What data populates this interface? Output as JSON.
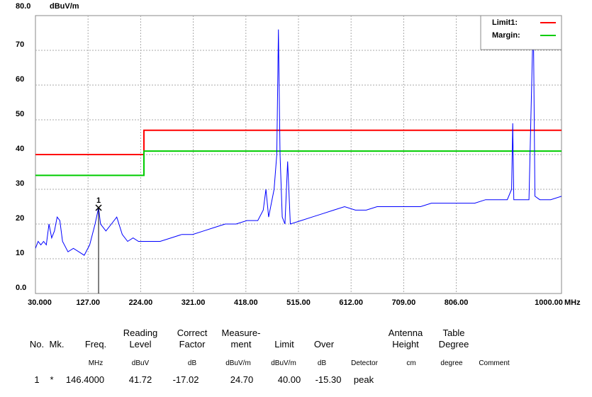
{
  "chart_data": {
    "type": "line",
    "y_unit": "dBuV/m",
    "x_unit": "MHz",
    "xlim": [
      30,
      1000
    ],
    "xticks": [
      {
        "value": 30,
        "label": "30.000"
      },
      {
        "value": 127,
        "label": "127.00"
      },
      {
        "value": 224,
        "label": "224.00"
      },
      {
        "value": 321,
        "label": "321.00"
      },
      {
        "value": 418,
        "label": "418.00"
      },
      {
        "value": 515,
        "label": "515.00"
      },
      {
        "value": 612,
        "label": "612.00"
      },
      {
        "value": 709,
        "label": "709.00"
      },
      {
        "value": 806,
        "label": "806.00"
      },
      {
        "value": 1000,
        "label": "1000.00"
      }
    ],
    "ylim": [
      0,
      80
    ],
    "yticks": [
      {
        "value": 0,
        "label": "0.0"
      },
      10,
      20,
      30,
      40,
      50,
      60,
      70,
      {
        "value": 80,
        "label": "80.0"
      }
    ],
    "grid": true,
    "legend": "top-right",
    "series": [
      {
        "color": "#0000ff",
        "x": [
          30,
          35,
          40,
          45,
          50,
          55,
          60,
          65,
          70,
          75,
          80,
          90,
          100,
          110,
          120,
          130,
          140,
          146.4,
          150,
          160,
          170,
          180,
          190,
          200,
          210,
          220,
          240,
          260,
          280,
          300,
          320,
          340,
          360,
          380,
          400,
          420,
          440,
          450,
          455,
          460,
          470,
          475,
          478,
          481,
          485,
          490,
          495,
          500,
          520,
          540,
          560,
          580,
          600,
          620,
          640,
          660,
          680,
          700,
          720,
          740,
          760,
          780,
          800,
          820,
          840,
          860,
          880,
          900,
          908,
          910,
          912,
          920,
          940,
          945,
          948,
          951,
          960,
          980,
          1000
        ],
        "values": [
          13,
          15,
          14,
          15,
          14,
          20,
          16,
          18,
          22,
          21,
          15,
          12,
          13,
          12,
          11,
          14,
          20,
          24.7,
          20,
          18,
          20,
          22,
          17,
          15,
          16,
          15,
          15,
          15,
          16,
          17,
          17,
          18,
          19,
          20,
          20,
          21,
          21,
          24,
          30,
          22,
          30,
          40,
          76,
          40,
          22,
          20,
          38,
          20,
          21,
          22,
          23,
          24,
          25,
          24,
          24,
          25,
          25,
          25,
          25,
          25,
          26,
          26,
          26,
          26,
          26,
          27,
          27,
          27,
          30,
          49,
          27,
          27,
          27,
          60,
          80,
          28,
          27,
          27,
          28
        ]
      },
      {
        "name": "Limit1:",
        "color": "#ff0000",
        "x": [
          30,
          230,
          230,
          1000
        ],
        "values": [
          40,
          40,
          47,
          47
        ]
      },
      {
        "name": "Margin:",
        "color": "#00cc00",
        "x": [
          30,
          230,
          230,
          1000
        ],
        "values": [
          34,
          34,
          41,
          41
        ]
      }
    ],
    "marker": {
      "label": "1",
      "x": 146.4,
      "value": 24.7
    }
  },
  "table": {
    "headers": [
      "No.",
      "Mk.",
      "Freq.",
      "Reading\nLevel",
      "Correct\nFactor",
      "Measure-\nment",
      "Limit",
      "Over",
      "Antenna\nHeight",
      "Table\nDegree"
    ],
    "units": [
      "MHz",
      "dBuV",
      "dB",
      "dBuV/m",
      "dBuV/m",
      "dB",
      "Detector",
      "cm",
      "degree",
      "Comment"
    ],
    "rows": [
      [
        "1",
        "*",
        "146.4000",
        "41.72",
        "-17.02",
        "24.70",
        "40.00",
        "-15.30",
        "peak"
      ]
    ]
  }
}
